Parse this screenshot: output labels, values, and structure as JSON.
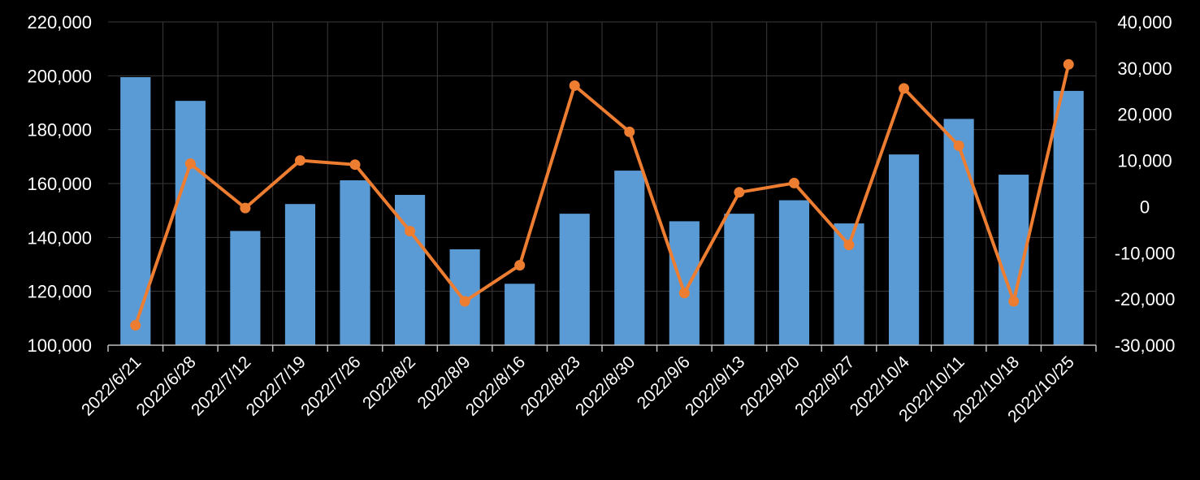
{
  "chart_data": {
    "type": "bar+line",
    "title": "",
    "categories": [
      "2022/6/21",
      "2022/6/28",
      "2022/7/12",
      "2022/7/19",
      "2022/7/26",
      "2022/8/2",
      "2022/8/9",
      "2022/8/16",
      "2022/8/23",
      "2022/8/30",
      "2022/9/6",
      "2022/9/13",
      "2022/9/20",
      "2022/9/27",
      "2022/10/4",
      "2022/10/11",
      "2022/10/18",
      "2022/10/25"
    ],
    "series": [
      {
        "type": "bar",
        "axis": "left",
        "color": "#5b9bd5",
        "values": [
          199500,
          190700,
          142400,
          152400,
          161200,
          155800,
          135600,
          122800,
          148800,
          164800,
          146000,
          148800,
          153800,
          145200,
          170800,
          184000,
          163300,
          194400
        ]
      },
      {
        "type": "line",
        "axis": "right",
        "color": "#ed7d31",
        "values": [
          -25700,
          9300,
          -300,
          10000,
          9100,
          -5300,
          -20500,
          -12700,
          26200,
          16200,
          -18700,
          3100,
          5100,
          -8300,
          25600,
          13200,
          -20500,
          30800
        ]
      }
    ],
    "y_left": {
      "min": 100000,
      "max": 220000,
      "step": 20000,
      "tick_labels": [
        "100,000",
        "120,000",
        "140,000",
        "160,000",
        "180,000",
        "200,000",
        "220,000"
      ]
    },
    "y_right": {
      "min": -30000,
      "max": 40000,
      "step": 10000,
      "tick_labels": [
        "-30,000",
        "-20,000",
        "-10,000",
        "0",
        "10,000",
        "20,000",
        "30,000",
        "40,000"
      ]
    },
    "grid": true,
    "legend": "none"
  }
}
